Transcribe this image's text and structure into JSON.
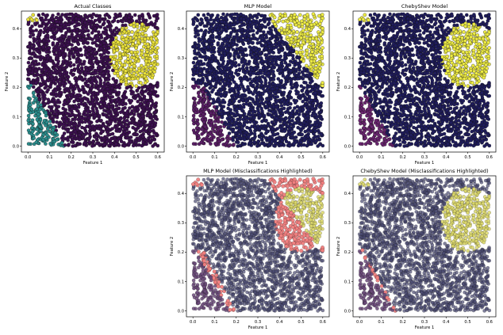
{
  "chart_data": [
    {
      "type": "scatter",
      "title": "Actual Classes",
      "xlabel": "Feature 1",
      "ylabel": "Feature 2",
      "xlim": [
        -0.03,
        0.63
      ],
      "ylim": [
        -0.02,
        0.46
      ],
      "xticks": [
        "0.0",
        "0.1",
        "0.2",
        "0.3",
        "0.4",
        "0.5",
        "0.6"
      ],
      "yticks": [
        "0.0",
        "0.1",
        "0.2",
        "0.3",
        "0.4"
      ],
      "classes": [
        {
          "color": "#3b0f4f",
          "region": "background (purple, dominant)"
        },
        {
          "color": "#e8e03a",
          "region": "upper-right cluster x 0.38-0.60, y 0.22-0.40; small corner x 0.00-0.04, y 0.43-0.45"
        },
        {
          "color": "#2a8c8c",
          "region": "lower-left wedge x 0.00-0.17, y 0.00-0.20"
        }
      ],
      "misclassifications_highlighted": false
    },
    {
      "type": "scatter",
      "title": "MLP Model",
      "xlabel": "Feature 1",
      "ylabel": "Feature 2",
      "xlim": [
        -0.03,
        0.63
      ],
      "ylim": [
        -0.02,
        0.46
      ],
      "xticks": [
        "0.0",
        "0.1",
        "0.2",
        "0.3",
        "0.4",
        "0.5",
        "0.6"
      ],
      "yticks": [
        "0.0",
        "0.1",
        "0.2",
        "0.3",
        "0.4"
      ],
      "classes": [
        {
          "color": "#1f1c5c",
          "region": "background (navy, dominant)"
        },
        {
          "color": "#ecea44",
          "region": "upper-right triangle x 0.33-0.60, y 0.20-0.45"
        },
        {
          "color": "#5a1e66",
          "region": "lower-left wedge x 0.00-0.20, y 0.00-0.22"
        }
      ],
      "misclassifications_highlighted": false
    },
    {
      "type": "scatter",
      "title": "ChebyShev Model",
      "xlabel": "Feature 1",
      "ylabel": "Feature 2",
      "xlim": [
        -0.03,
        0.63
      ],
      "ylim": [
        -0.02,
        0.46
      ],
      "xticks": [
        "0.0",
        "0.1",
        "0.2",
        "0.3",
        "0.4",
        "0.5",
        "0.6"
      ],
      "yticks": [
        "0.0",
        "0.1",
        "0.2",
        "0.3",
        "0.4"
      ],
      "classes": [
        {
          "color": "#1f1c5c",
          "region": "background (navy, dominant)"
        },
        {
          "color": "#ecea44",
          "region": "upper-right cluster x 0.38-0.60, y 0.22-0.40; small corner x 0.00-0.04, y 0.43-0.45"
        },
        {
          "color": "#6a2570",
          "region": "lower-left wedge x 0.00-0.16, y 0.00-0.20"
        }
      ],
      "misclassifications_highlighted": false
    },
    {
      "type": "scatter",
      "title": "MLP Model (Misclassifications Highlighted)",
      "xlabel": "Feature 1",
      "ylabel": "Feature 2",
      "xlim": [
        -0.03,
        0.63
      ],
      "ylim": [
        -0.02,
        0.46
      ],
      "xticks": [
        "0.0",
        "0.1",
        "0.2",
        "0.3",
        "0.4",
        "0.5",
        "0.6"
      ],
      "yticks": [
        "0.0",
        "0.1",
        "0.2",
        "0.3",
        "0.4"
      ],
      "classes": [
        {
          "color": "#4a4a72",
          "region": "background (faded navy)"
        },
        {
          "color": "#dcd86a",
          "region": "upper-right cluster x 0.38-0.60, y 0.22-0.40"
        },
        {
          "color": "#6b4a7a",
          "region": "lower-left wedge x 0.00-0.16, y 0.00-0.20"
        }
      ],
      "misclassified_color": "#f08080",
      "misclassified_regions": [
        "top band x 0.34-0.60, y 0.40-0.45",
        "diagonal band x 0.33-0.60, y 0.20-0.40",
        "left corner x 0.00-0.04, y 0.43-0.45",
        "lower-left diagonal x 0.00-0.20, y 0.00-0.20"
      ],
      "misclassifications_highlighted": true
    },
    {
      "type": "scatter",
      "title": "ChebyShev Model (Misclassifications Highlighted)",
      "xlabel": "Feature 1",
      "ylabel": "Feature 2",
      "xlim": [
        -0.03,
        0.63
      ],
      "ylim": [
        -0.02,
        0.46
      ],
      "xticks": [
        "0.0",
        "0.1",
        "0.2",
        "0.3",
        "0.4",
        "0.5",
        "0.6"
      ],
      "yticks": [
        "0.0",
        "0.1",
        "0.2",
        "0.3",
        "0.4"
      ],
      "classes": [
        {
          "color": "#4a4a72",
          "region": "background (faded navy)"
        },
        {
          "color": "#dcd86a",
          "region": "upper-right cluster x 0.38-0.60, y 0.22-0.40; small corner x 0.00-0.04, y 0.43-0.45"
        },
        {
          "color": "#6b4a7a",
          "region": "lower-left wedge x 0.00-0.16, y 0.00-0.20"
        }
      ],
      "misclassified_color": "#f08080",
      "misclassified_regions": [
        "few points near x 0.03-0.06, y 0.16-0.18"
      ],
      "misclassifications_highlighted": true
    }
  ]
}
